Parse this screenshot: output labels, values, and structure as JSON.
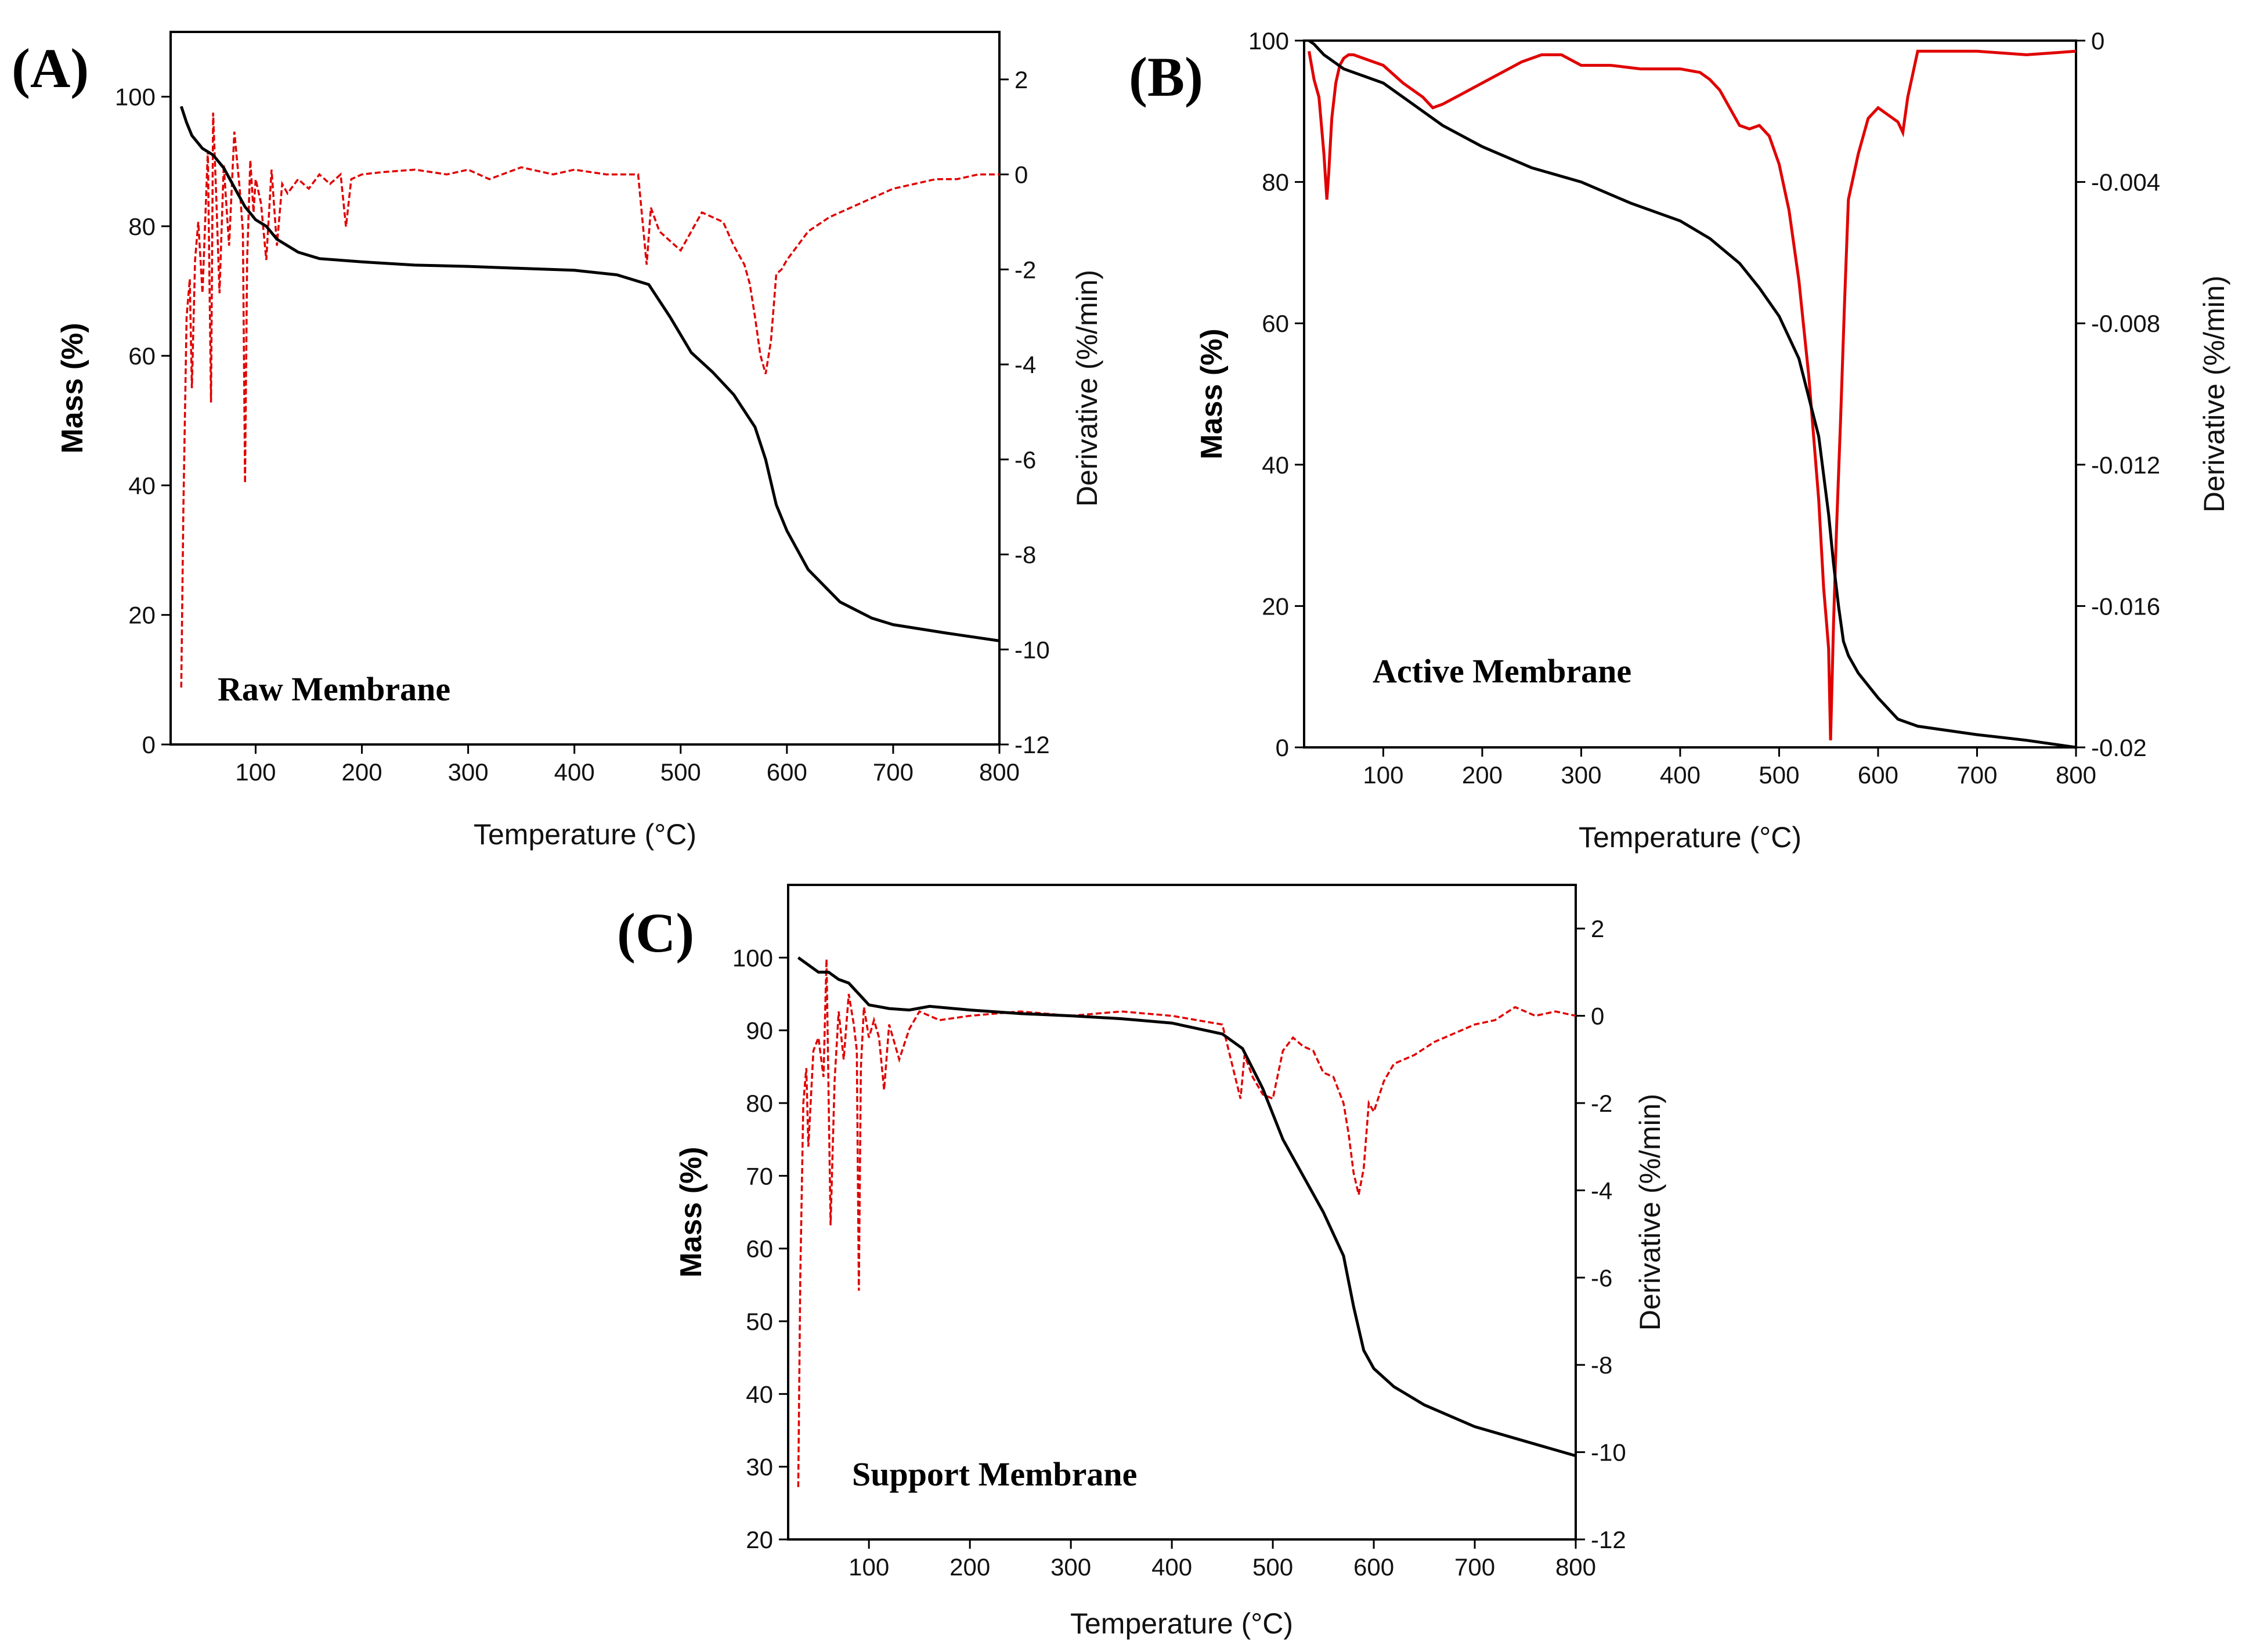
{
  "chart_data": [
    {
      "type": "line",
      "panel_label": "(A)",
      "annotation": "Raw Membrane",
      "xlabel": "Temperature (°C)",
      "ylabel": "Mass (%)",
      "y2label": "Derivative (%/min)",
      "xlim": [
        20,
        800
      ],
      "ylim": [
        0,
        110
      ],
      "y2lim": [
        -12,
        3
      ],
      "xticks": [
        100,
        200,
        300,
        400,
        500,
        600,
        700,
        800
      ],
      "yticks": [
        0,
        20,
        40,
        60,
        80,
        100
      ],
      "y2ticks": [
        -12,
        -10,
        -8,
        -6,
        -4,
        -2,
        0,
        2
      ],
      "xtick_labels": [
        "100",
        "200",
        "300",
        "400",
        "500",
        "600",
        "700",
        "800"
      ],
      "ytick_labels": [
        "0",
        "20",
        "40",
        "60",
        "80",
        "100"
      ],
      "y2tick_labels": [
        "-12",
        "-10",
        "-8",
        "-6",
        "-4",
        "-2",
        "0",
        "2"
      ],
      "series": [
        {
          "name": "Mass",
          "axis": "left",
          "color": "#000000",
          "x": [
            30,
            35,
            40,
            50,
            60,
            70,
            80,
            90,
            100,
            110,
            120,
            140,
            160,
            200,
            250,
            300,
            350,
            400,
            440,
            470,
            490,
            510,
            530,
            550,
            570,
            580,
            590,
            600,
            620,
            650,
            680,
            700,
            750,
            800
          ],
          "y": [
            98.5,
            96,
            94,
            92,
            91,
            89,
            86,
            83,
            81,
            80,
            78,
            76,
            75,
            74.5,
            74,
            73.8,
            73.5,
            73.2,
            72.5,
            71,
            66,
            60.5,
            57.5,
            54,
            49,
            44,
            37,
            33,
            27,
            22,
            19.5,
            18.5,
            17.2,
            16
          ]
        },
        {
          "name": "Derivative",
          "axis": "right",
          "color": "#e00000",
          "x": [
            30,
            32,
            35,
            38,
            40,
            43,
            46,
            50,
            55,
            58,
            60,
            63,
            66,
            70,
            75,
            80,
            85,
            88,
            90,
            92,
            95,
            98,
            100,
            105,
            110,
            115,
            120,
            125,
            130,
            140,
            150,
            160,
            170,
            180,
            185,
            190,
            200,
            220,
            250,
            280,
            300,
            320,
            350,
            380,
            400,
            430,
            460,
            468,
            472,
            480,
            490,
            500,
            510,
            520,
            530,
            540,
            550,
            560,
            565,
            570,
            575,
            580,
            585,
            590,
            595,
            600,
            610,
            620,
            640,
            660,
            680,
            700,
            720,
            740,
            760,
            780,
            800
          ],
          "y": [
            -10.8,
            -7,
            -3,
            -2.2,
            -4.5,
            -1.8,
            -1,
            -2.5,
            0.5,
            -4.8,
            1.3,
            -0.5,
            -2.5,
            0.2,
            -1.5,
            0.9,
            -0.3,
            -1.2,
            -6.5,
            -1.8,
            0.3,
            -0.8,
            -0.1,
            -0.6,
            -1.8,
            0.1,
            -1.5,
            -0.2,
            -0.4,
            -0.1,
            -0.3,
            0,
            -0.2,
            0,
            -1.1,
            -0.1,
            0,
            0.05,
            0.1,
            0,
            0.1,
            -0.1,
            0.15,
            0,
            0.1,
            0,
            0,
            -1.9,
            -0.7,
            -1.2,
            -1.4,
            -1.6,
            -1.2,
            -0.8,
            -0.9,
            -1,
            -1.5,
            -1.9,
            -2.3,
            -3,
            -3.8,
            -4.2,
            -3.5,
            -2.1,
            -2,
            -1.8,
            -1.5,
            -1.2,
            -0.9,
            -0.7,
            -0.5,
            -0.3,
            -0.2,
            -0.1,
            -0.1,
            0,
            0
          ]
        }
      ]
    },
    {
      "type": "line",
      "panel_label": "(B)",
      "annotation": "Active Membrane",
      "xlabel": "Temperature (°C)",
      "ylabel": "Mass (%)",
      "y2label": "Derivative (%/min)",
      "xlim": [
        20,
        800
      ],
      "ylim": [
        0,
        100
      ],
      "y2lim": [
        -0.02,
        0
      ],
      "xticks": [
        100,
        200,
        300,
        400,
        500,
        600,
        700,
        800
      ],
      "yticks": [
        0,
        20,
        40,
        60,
        80,
        100
      ],
      "y2ticks": [
        -0.02,
        -0.016,
        -0.012,
        -0.008,
        -0.004,
        0
      ],
      "xtick_labels": [
        "100",
        "200",
        "300",
        "400",
        "500",
        "600",
        "700",
        "800"
      ],
      "ytick_labels": [
        "0",
        "20",
        "40",
        "60",
        "80",
        "100"
      ],
      "y2tick_labels": [
        "-0.02",
        "-0.016",
        "-0.012",
        "-0.008",
        "-0.004",
        "0"
      ],
      "series": [
        {
          "name": "Mass",
          "axis": "left",
          "color": "#000000",
          "x": [
            25,
            30,
            40,
            50,
            60,
            80,
            100,
            130,
            160,
            200,
            250,
            300,
            350,
            400,
            430,
            460,
            480,
            500,
            520,
            540,
            550,
            555,
            560,
            565,
            570,
            580,
            600,
            620,
            640,
            700,
            750,
            800
          ],
          "y": [
            100,
            99.5,
            98,
            97,
            96,
            95,
            94,
            91,
            88,
            85,
            82,
            80,
            77,
            74.5,
            72,
            68.5,
            65,
            61,
            55,
            44,
            33,
            26,
            20,
            15,
            13,
            10.5,
            7,
            4,
            3,
            1.8,
            1,
            0
          ]
        },
        {
          "name": "Derivative",
          "axis": "right",
          "color": "#e00000",
          "x": [
            25,
            30,
            35,
            40,
            43,
            45,
            48,
            52,
            56,
            60,
            65,
            70,
            80,
            100,
            120,
            140,
            150,
            160,
            180,
            200,
            220,
            240,
            260,
            280,
            300,
            330,
            360,
            400,
            420,
            430,
            440,
            450,
            460,
            470,
            480,
            490,
            500,
            510,
            520,
            530,
            540,
            545,
            548,
            550,
            552,
            555,
            558,
            562,
            566,
            570,
            580,
            590,
            600,
            610,
            620,
            625,
            630,
            640,
            660,
            700,
            750,
            800
          ],
          "y": [
            -0.0003,
            -0.0011,
            -0.0016,
            -0.0032,
            -0.0045,
            -0.0037,
            -0.0022,
            -0.0012,
            -0.0007,
            -0.0005,
            -0.0004,
            -0.0004,
            -0.0005,
            -0.0007,
            -0.0012,
            -0.0016,
            -0.0019,
            -0.0018,
            -0.0015,
            -0.0012,
            -0.0009,
            -0.0006,
            -0.0004,
            -0.0004,
            -0.0007,
            -0.0007,
            -0.0008,
            -0.0008,
            -0.0009,
            -0.0011,
            -0.0014,
            -0.0019,
            -0.0024,
            -0.0025,
            -0.0024,
            -0.0027,
            -0.0035,
            -0.0048,
            -0.0068,
            -0.0095,
            -0.013,
            -0.0155,
            -0.0165,
            -0.0172,
            -0.0198,
            -0.0165,
            -0.0138,
            -0.0108,
            -0.0075,
            -0.0045,
            -0.0032,
            -0.0022,
            -0.0019,
            -0.0021,
            -0.0023,
            -0.0026,
            -0.0016,
            -0.0003,
            -0.0003,
            -0.0003,
            -0.0004,
            -0.0003
          ]
        }
      ]
    },
    {
      "type": "line",
      "panel_label": "(C)",
      "annotation": "Support Membrane",
      "xlabel": "Temperature (°C)",
      "ylabel": "Mass (%)",
      "y2label": "Derivative (%/min)",
      "xlim": [
        20,
        800
      ],
      "ylim": [
        20,
        110
      ],
      "y2lim": [
        -12,
        3
      ],
      "xticks": [
        100,
        200,
        300,
        400,
        500,
        600,
        700,
        800
      ],
      "yticks": [
        20,
        30,
        40,
        50,
        60,
        70,
        80,
        90,
        100
      ],
      "y2ticks": [
        -12,
        -10,
        -8,
        -6,
        -4,
        -2,
        0,
        2
      ],
      "xtick_labels": [
        "100",
        "200",
        "300",
        "400",
        "500",
        "600",
        "700",
        "800"
      ],
      "ytick_labels": [
        "20",
        "30",
        "40",
        "50",
        "60",
        "70",
        "80",
        "90",
        "100"
      ],
      "y2tick_labels": [
        "-12",
        "-10",
        "-8",
        "-6",
        "-4",
        "-2",
        "0",
        "2"
      ],
      "series": [
        {
          "name": "Mass",
          "axis": "left",
          "color": "#000000",
          "x": [
            30,
            40,
            50,
            60,
            70,
            80,
            90,
            100,
            120,
            140,
            160,
            200,
            250,
            300,
            350,
            400,
            450,
            470,
            490,
            510,
            530,
            550,
            570,
            580,
            590,
            600,
            620,
            650,
            700,
            750,
            800
          ],
          "y": [
            100,
            99,
            98,
            98,
            97,
            96.5,
            95,
            93.5,
            93,
            92.8,
            93.3,
            92.8,
            92.3,
            92,
            91.6,
            91,
            89.5,
            87.5,
            82,
            75,
            70,
            65,
            59,
            52,
            46,
            43.5,
            41,
            38.5,
            35.5,
            33.5,
            31.5
          ]
        },
        {
          "name": "Derivative",
          "axis": "right",
          "color": "#e00000",
          "x": [
            30,
            32,
            35,
            38,
            40,
            45,
            50,
            55,
            58,
            62,
            66,
            70,
            75,
            80,
            85,
            88,
            90,
            92,
            95,
            100,
            105,
            110,
            115,
            120,
            130,
            140,
            150,
            170,
            200,
            250,
            300,
            350,
            400,
            450,
            468,
            472,
            480,
            490,
            500,
            510,
            520,
            530,
            540,
            550,
            560,
            570,
            575,
            580,
            585,
            590,
            595,
            600,
            610,
            620,
            640,
            660,
            680,
            700,
            720,
            740,
            760,
            780,
            800
          ],
          "y": [
            -10.8,
            -6,
            -2,
            -1.2,
            -3,
            -0.8,
            -0.5,
            -1.4,
            1.3,
            -4.8,
            -1.5,
            0.1,
            -1,
            0.5,
            -0.2,
            -0.8,
            -6.3,
            -1.2,
            0.2,
            -0.5,
            -0.1,
            -0.5,
            -1.7,
            -0.2,
            -1,
            -0.3,
            0.1,
            -0.1,
            0,
            0.1,
            0,
            0.1,
            0,
            -0.2,
            -1.9,
            -0.9,
            -1.4,
            -1.8,
            -1.9,
            -0.8,
            -0.5,
            -0.7,
            -0.8,
            -1.3,
            -1.4,
            -2,
            -2.7,
            -3.6,
            -4.1,
            -3.5,
            -2,
            -2.2,
            -1.5,
            -1.1,
            -0.9,
            -0.6,
            -0.4,
            -0.2,
            -0.1,
            0.2,
            0,
            0.1,
            0
          ]
        }
      ]
    }
  ]
}
